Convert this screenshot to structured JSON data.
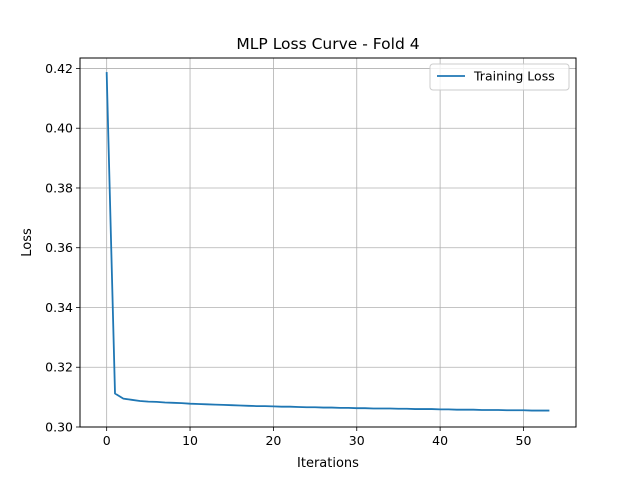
{
  "chart_data": {
    "type": "line",
    "title": "MLP Loss Curve - Fold 4",
    "xlabel": "Iterations",
    "ylabel": "Loss",
    "xlim": [
      -3.2,
      56.3
    ],
    "ylim": [
      0.3,
      0.4235
    ],
    "xticks": [
      0,
      10,
      20,
      30,
      40,
      50
    ],
    "yticks": [
      0.3,
      0.32,
      0.34,
      0.36,
      0.38,
      0.4,
      0.42
    ],
    "ytick_labels": [
      "0.30",
      "0.32",
      "0.34",
      "0.36",
      "0.38",
      "0.40",
      "0.42"
    ],
    "grid": true,
    "legend_position": "top-right",
    "series": [
      {
        "name": "Training Loss",
        "color": "#1f77b4",
        "x": [
          0,
          1,
          2,
          3,
          4,
          5,
          6,
          7,
          8,
          9,
          10,
          11,
          12,
          13,
          14,
          15,
          16,
          17,
          18,
          19,
          20,
          21,
          22,
          23,
          24,
          25,
          26,
          27,
          28,
          29,
          30,
          31,
          32,
          33,
          34,
          35,
          36,
          37,
          38,
          39,
          40,
          41,
          42,
          43,
          44,
          45,
          46,
          47,
          48,
          49,
          50,
          51,
          52,
          53
        ],
        "values": [
          0.4185,
          0.3112,
          0.3095,
          0.3091,
          0.3087,
          0.3085,
          0.3084,
          0.3082,
          0.3081,
          0.308,
          0.3078,
          0.3077,
          0.3076,
          0.3075,
          0.3074,
          0.3073,
          0.3072,
          0.3071,
          0.307,
          0.307,
          0.3069,
          0.3068,
          0.3068,
          0.3067,
          0.3066,
          0.3066,
          0.3065,
          0.3065,
          0.3064,
          0.3064,
          0.3063,
          0.3063,
          0.3062,
          0.3062,
          0.3062,
          0.3061,
          0.3061,
          0.306,
          0.306,
          0.306,
          0.3059,
          0.3059,
          0.3058,
          0.3058,
          0.3058,
          0.3057,
          0.3057,
          0.3057,
          0.3056,
          0.3056,
          0.3056,
          0.3055,
          0.3055,
          0.3055
        ]
      }
    ]
  }
}
